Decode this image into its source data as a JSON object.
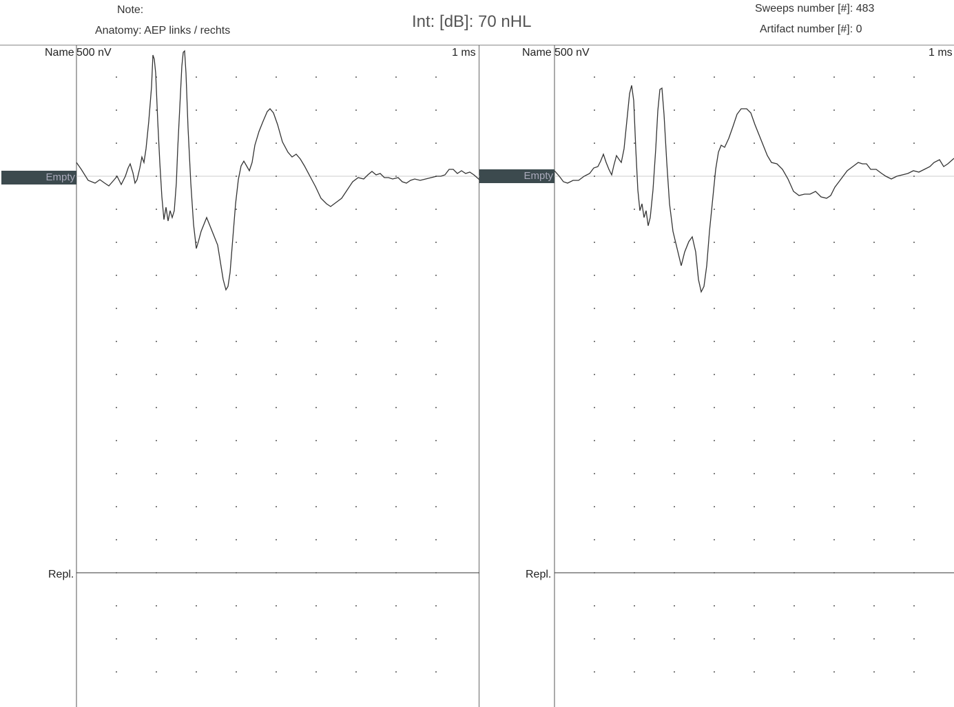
{
  "header": {
    "note": "Note:",
    "anatomy": "Anatomy: AEP links / rechts",
    "intensity": "Int: [dB]: 70 nHL",
    "sweeps": "Sweeps number [#]: 483",
    "artifacts": "Artifact number [#]: 0"
  },
  "panels": [
    {
      "name_label": "Name",
      "amplitude_scale": "500 nV",
      "time_scale": "1 ms",
      "channel_tag": "Empty",
      "replay_label": "Repl."
    },
    {
      "name_label": "Name",
      "amplitude_scale": "500 nV",
      "time_scale": "1 ms",
      "channel_tag": "Empty",
      "replay_label": "Repl."
    }
  ],
  "colors": {
    "trace": "#333333",
    "grid_dot": "#555555",
    "channel_tag_bg": "#3c4a4e"
  }
}
